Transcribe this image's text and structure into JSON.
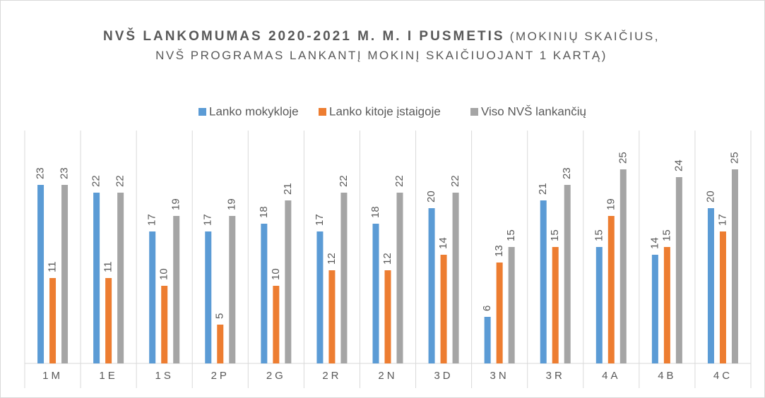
{
  "chart_data": {
    "type": "bar",
    "title": "NVŠ LANKOMUMAS 2020-2021 M. M. I PUSMETIS",
    "subtitle": "(MOKINIŲ SKAIČIUS, NVŠ PROGRAMAS LANKANTĮ MOKINĮ SKAIČIUOJANT 1 KARTĄ)",
    "categories": [
      "1M",
      "1E",
      "1S",
      "2P",
      "2G",
      "2R",
      "2N",
      "3D",
      "3N",
      "3R",
      "4A",
      "4B",
      "4C"
    ],
    "series": [
      {
        "name": "Lanko mokykloje",
        "color": "#5b9bd5",
        "values": [
          23,
          22,
          17,
          17,
          18,
          17,
          18,
          20,
          6,
          21,
          15,
          14,
          20
        ]
      },
      {
        "name": "Lanko kitoje įstaigoje",
        "color": "#ed7d31",
        "values": [
          11,
          11,
          10,
          5,
          10,
          12,
          12,
          14,
          13,
          15,
          19,
          15,
          17
        ]
      },
      {
        "name": "Viso NVŠ lankančių",
        "color": "#a5a5a5",
        "values": [
          23,
          22,
          19,
          19,
          21,
          22,
          22,
          22,
          15,
          23,
          25,
          24,
          25
        ]
      }
    ],
    "ylim": [
      0,
      30
    ],
    "legend": "top"
  }
}
